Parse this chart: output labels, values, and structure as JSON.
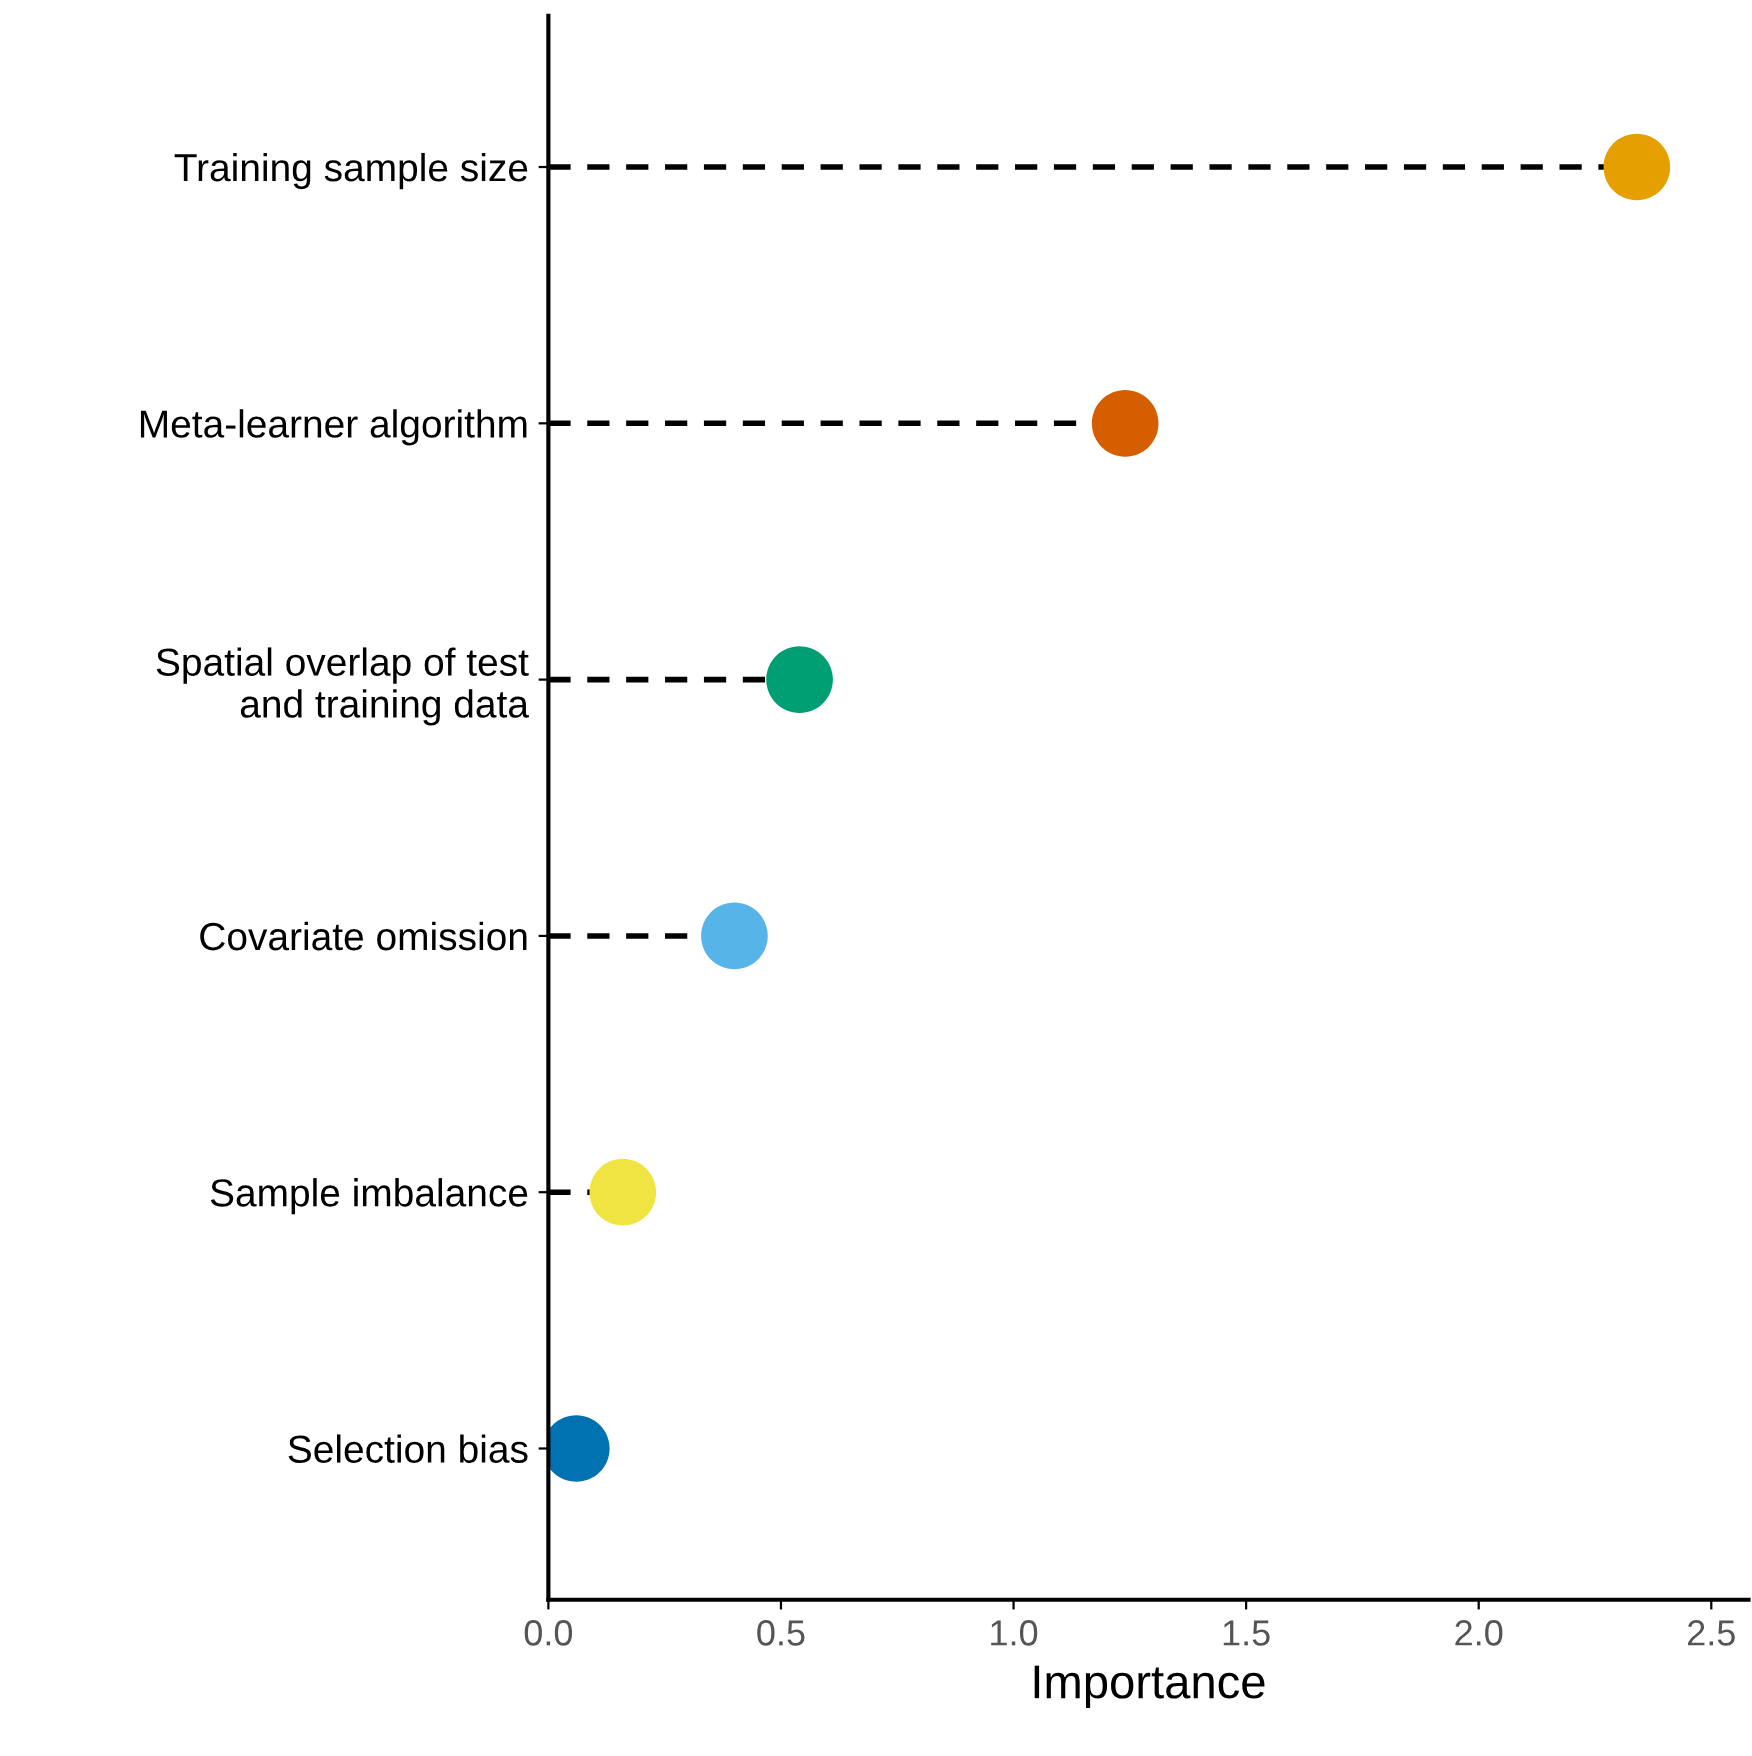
{
  "chart_data": {
    "type": "lollipop",
    "orientation": "horizontal",
    "xlabel": "Importance",
    "categories": [
      "Training sample size",
      "Meta-learner algorithm",
      "Spatial overlap of test\nand training data",
      "Covariate omission",
      "Sample imbalance",
      "Selection bias"
    ],
    "values": [
      2.34,
      1.24,
      0.54,
      0.4,
      0.16,
      0.06
    ],
    "colors": [
      "#e69f00",
      "#d55e00",
      "#009e73",
      "#56b4e9",
      "#f0e442",
      "#0072b2"
    ],
    "xlim": [
      0,
      2.58
    ],
    "xticks": [
      {
        "value": 0,
        "label": "0.0"
      },
      {
        "value": 0.5,
        "label": "0.5"
      },
      {
        "value": 1,
        "label": "1.0"
      },
      {
        "value": 1.5,
        "label": "1.5"
      },
      {
        "value": 2,
        "label": "2.0"
      },
      {
        "value": 2.5,
        "label": "2.5"
      }
    ],
    "marker": "circle",
    "line_style": "dashed",
    "grid": false,
    "legend": false
  }
}
